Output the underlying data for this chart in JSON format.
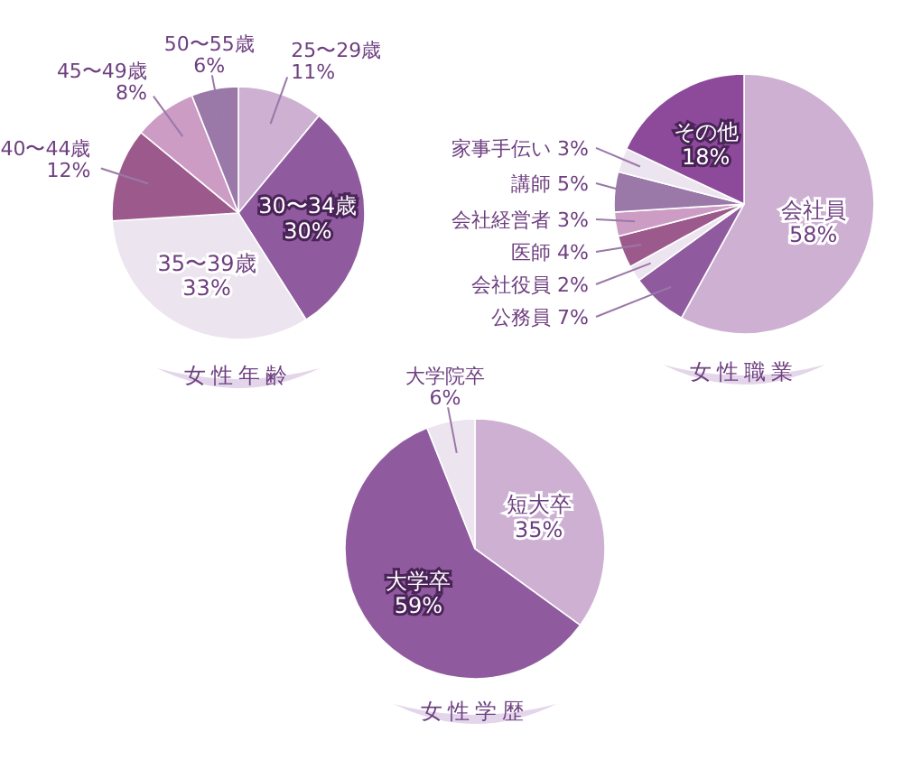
{
  "chart_data": [
    {
      "type": "pie",
      "title": "女性年齢",
      "categories": [
        "25〜29歳",
        "30〜34歳",
        "35〜39歳",
        "40〜44歳",
        "45〜49歳",
        "50〜55歳"
      ],
      "values": [
        11,
        30,
        33,
        12,
        8,
        6
      ],
      "value_labels": [
        "11%",
        "30%",
        "33%",
        "12%",
        "8%",
        "6%"
      ],
      "colors": [
        "#cdb0d2",
        "#8f5b9e",
        "#ece4ef",
        "#9c5a8c",
        "#cc9cc4",
        "#9a78a8"
      ]
    },
    {
      "type": "pie",
      "title": "女性職業",
      "categories": [
        "会社員",
        "公務員",
        "会社役員",
        "医師",
        "会社経営者",
        "講師",
        "家事手伝い",
        "その他"
      ],
      "values": [
        58,
        7,
        2,
        4,
        3,
        5,
        3,
        18
      ],
      "value_labels": [
        "58%",
        "7%",
        "2%",
        "4%",
        "3%",
        "5%",
        "3%",
        "18%"
      ],
      "colors": [
        "#cdb0d2",
        "#8f5b9e",
        "#ece4ef",
        "#9c5a8c",
        "#cc9cc4",
        "#9a78a8",
        "#ece4ef",
        "#8e4a9a"
      ]
    },
    {
      "type": "pie",
      "title": "女性学歴",
      "categories": [
        "短大卒",
        "大学卒",
        "大学院卒"
      ],
      "values": [
        35,
        59,
        6
      ],
      "value_labels": [
        "35%",
        "59%",
        "6%"
      ],
      "colors": [
        "#cdb0d2",
        "#8f5b9e",
        "#ece4ef"
      ]
    }
  ]
}
